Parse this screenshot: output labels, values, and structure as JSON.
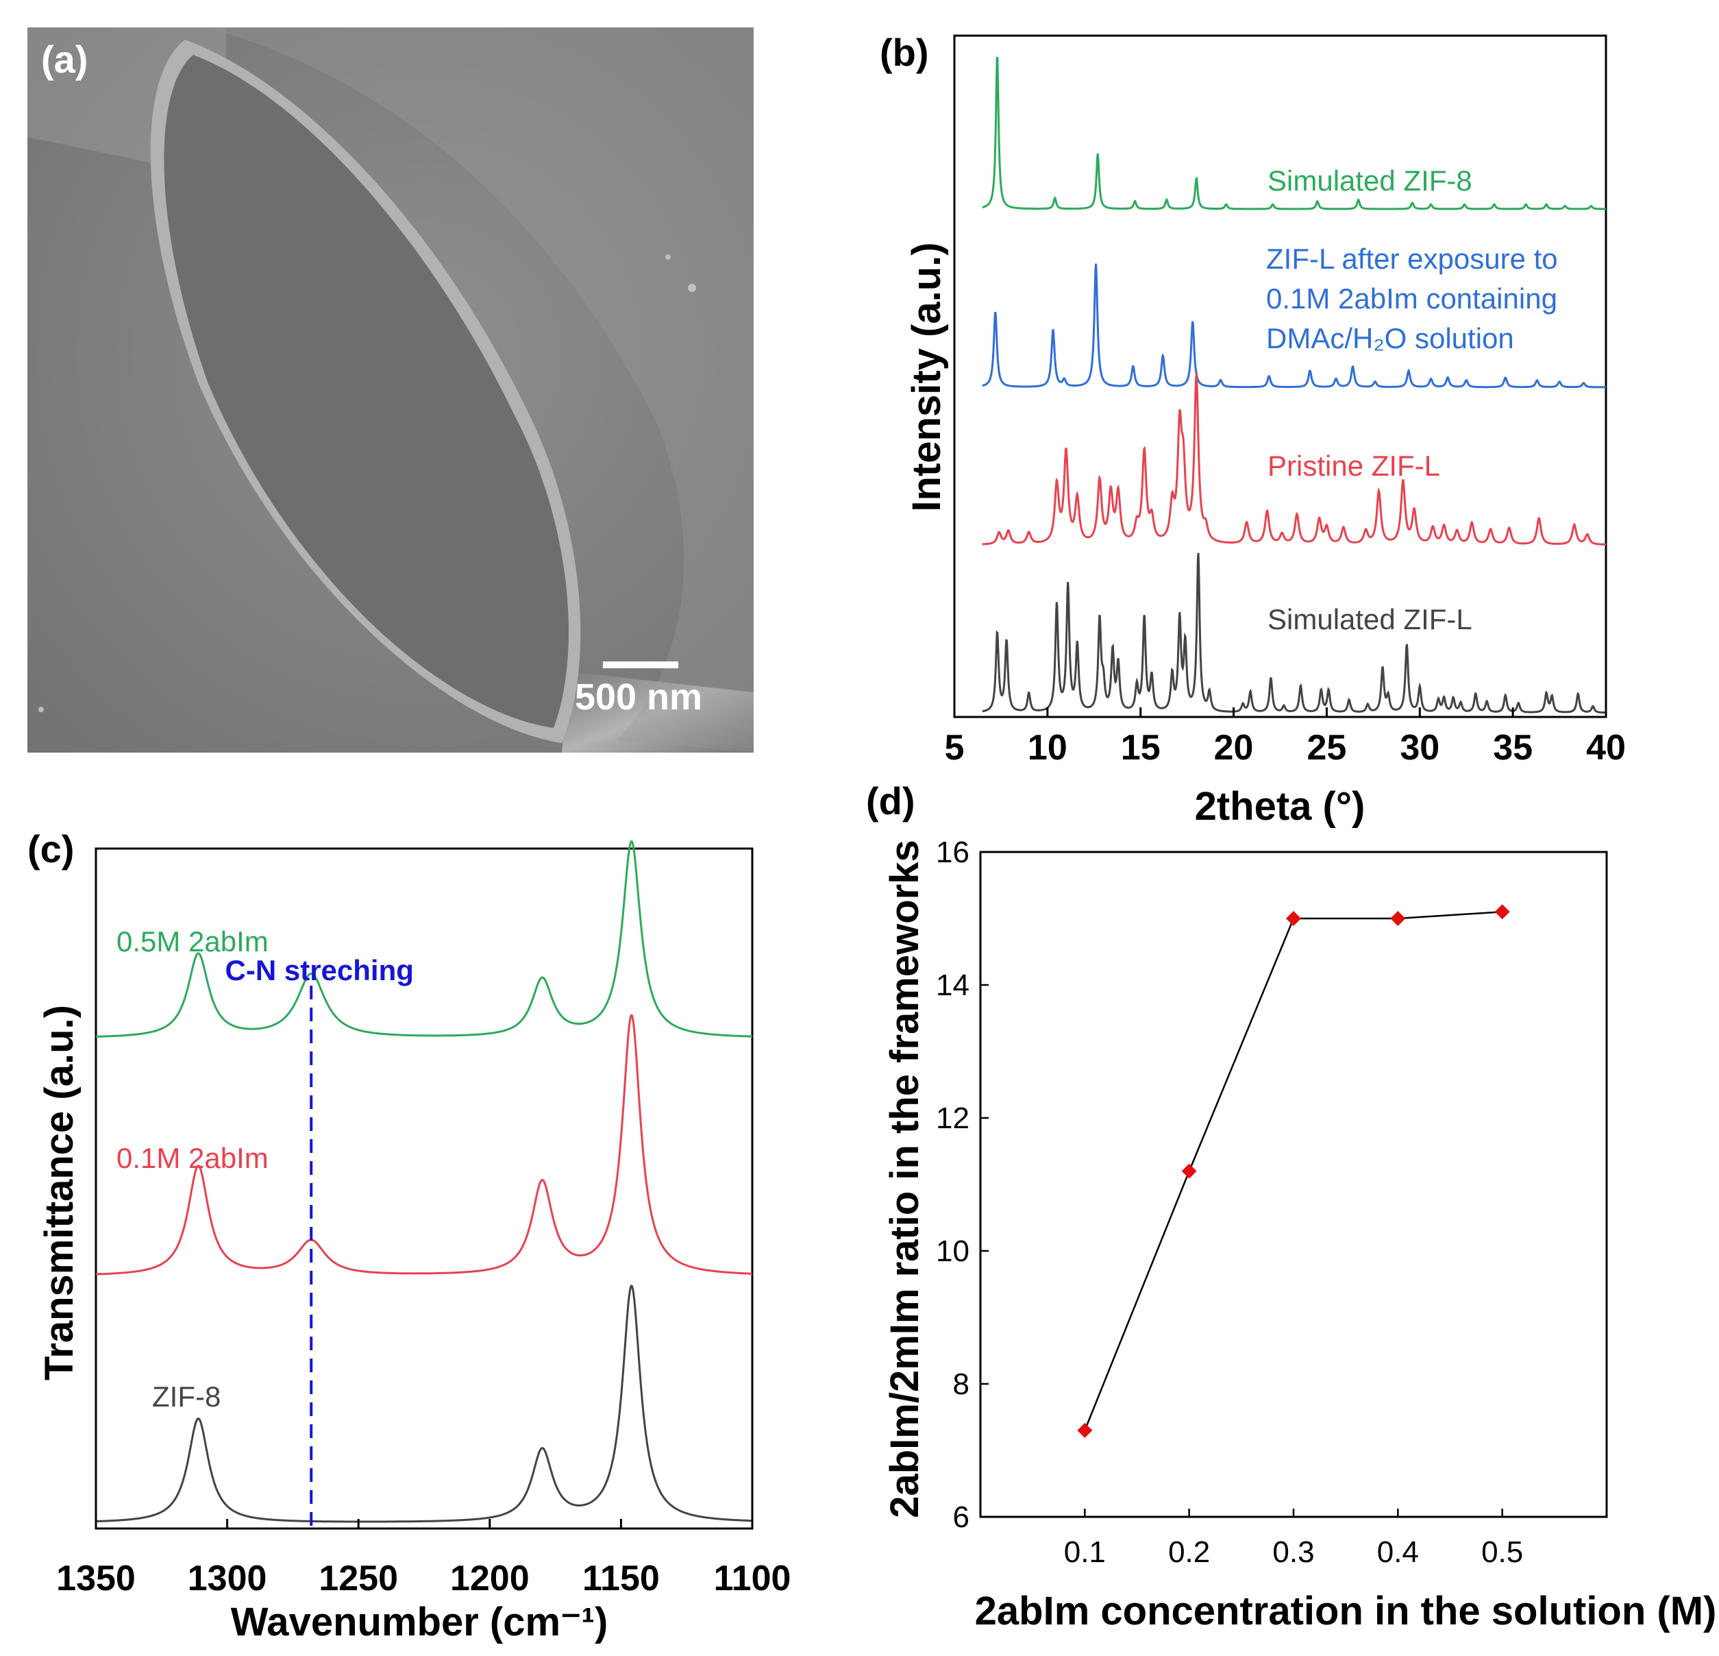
{
  "panels": {
    "a": {
      "label": "(a)",
      "scale_bar": "500 nm"
    },
    "b": {
      "label": "(b)"
    },
    "c": {
      "label": "(c)"
    },
    "d": {
      "label": "(d)"
    }
  },
  "colors": {
    "green": "#2eaa5c",
    "blue": "#2f6fd8",
    "red": "#e8424f",
    "gray": "#444444",
    "annot": "#1515d9",
    "marker": "#e01010"
  },
  "chart_data": [
    {
      "panel": "b",
      "type": "line",
      "title": "",
      "xlabel": "2theta (°)",
      "ylabel": "Intensity (a.u.)",
      "xlim": [
        5,
        40
      ],
      "xticks": [
        "5",
        "10",
        "15",
        "20",
        "25",
        "30",
        "35",
        "40"
      ],
      "series": [
        {
          "name": "Simulated ZIF-8",
          "label_lines": [
            "Simulated ZIF-8"
          ],
          "color": "green",
          "offset": 3,
          "peaks": [
            [
              7.3,
              1.0
            ],
            [
              10.4,
              0.07
            ],
            [
              12.7,
              0.36
            ],
            [
              14.7,
              0.05
            ],
            [
              16.4,
              0.06
            ],
            [
              18.0,
              0.2
            ],
            [
              19.6,
              0.03
            ],
            [
              22.1,
              0.03
            ],
            [
              24.5,
              0.05
            ],
            [
              26.7,
              0.06
            ],
            [
              29.6,
              0.04
            ],
            [
              30.6,
              0.03
            ],
            [
              32.4,
              0.03
            ],
            [
              34.0,
              0.03
            ],
            [
              35.7,
              0.03
            ],
            [
              36.8,
              0.03
            ],
            [
              37.8,
              0.02
            ],
            [
              39.2,
              0.02
            ]
          ]
        },
        {
          "name": "ZIF-L after exposure to 0.1M 2abIm containing DMAc/H2O solution",
          "label_lines": [
            "ZIF-L after exposure to",
            "0.1M 2abIm containing",
            "DMAc/H₂O solution"
          ],
          "color": "blue",
          "offset": 2,
          "peaks": [
            [
              7.2,
              0.55
            ],
            [
              10.3,
              0.42
            ],
            [
              10.9,
              0.05
            ],
            [
              12.6,
              0.9
            ],
            [
              14.6,
              0.15
            ],
            [
              16.2,
              0.23
            ],
            [
              17.8,
              0.48
            ],
            [
              19.3,
              0.05
            ],
            [
              21.9,
              0.08
            ],
            [
              24.1,
              0.12
            ],
            [
              25.5,
              0.06
            ],
            [
              26.4,
              0.15
            ],
            [
              27.6,
              0.04
            ],
            [
              29.4,
              0.12
            ],
            [
              30.6,
              0.06
            ],
            [
              31.5,
              0.07
            ],
            [
              32.5,
              0.05
            ],
            [
              34.6,
              0.07
            ],
            [
              36.3,
              0.05
            ],
            [
              37.5,
              0.04
            ],
            [
              38.8,
              0.03
            ]
          ]
        },
        {
          "name": "Pristine ZIF-L",
          "label_lines": [
            "Pristine ZIF-L"
          ],
          "color": "red",
          "offset": 1,
          "peaks": [
            [
              7.4,
              0.07
            ],
            [
              7.9,
              0.08
            ],
            [
              9.0,
              0.07
            ],
            [
              10.5,
              0.35
            ],
            [
              11.0,
              0.55
            ],
            [
              11.6,
              0.27
            ],
            [
              12.8,
              0.38
            ],
            [
              13.4,
              0.3
            ],
            [
              13.8,
              0.3
            ],
            [
              14.8,
              0.1
            ],
            [
              15.2,
              0.55
            ],
            [
              15.6,
              0.14
            ],
            [
              16.7,
              0.22
            ],
            [
              17.1,
              0.65
            ],
            [
              17.3,
              0.4
            ],
            [
              18.0,
              1.0
            ],
            [
              18.5,
              0.08
            ],
            [
              20.7,
              0.13
            ],
            [
              21.8,
              0.2
            ],
            [
              22.6,
              0.06
            ],
            [
              23.4,
              0.18
            ],
            [
              24.6,
              0.15
            ],
            [
              25.0,
              0.1
            ],
            [
              25.9,
              0.1
            ],
            [
              27.1,
              0.08
            ],
            [
              27.8,
              0.32
            ],
            [
              29.1,
              0.38
            ],
            [
              29.7,
              0.2
            ],
            [
              30.7,
              0.1
            ],
            [
              31.3,
              0.11
            ],
            [
              32.0,
              0.08
            ],
            [
              32.8,
              0.13
            ],
            [
              33.8,
              0.09
            ],
            [
              34.8,
              0.1
            ],
            [
              36.4,
              0.16
            ],
            [
              38.3,
              0.12
            ],
            [
              39.0,
              0.06
            ]
          ]
        },
        {
          "name": "Simulated ZIF-L",
          "label_lines": [
            "Simulated ZIF-L"
          ],
          "color": "gray",
          "offset": 0,
          "peaks": [
            [
              7.3,
              0.5
            ],
            [
              7.8,
              0.45
            ],
            [
              9.0,
              0.12
            ],
            [
              10.5,
              0.68
            ],
            [
              11.1,
              0.8
            ],
            [
              11.6,
              0.42
            ],
            [
              12.8,
              0.58
            ],
            [
              13.0,
              0.17
            ],
            [
              13.5,
              0.38
            ],
            [
              13.8,
              0.3
            ],
            [
              14.8,
              0.16
            ],
            [
              15.2,
              0.6
            ],
            [
              15.6,
              0.22
            ],
            [
              16.7,
              0.23
            ],
            [
              17.1,
              0.58
            ],
            [
              17.4,
              0.42
            ],
            [
              18.1,
              1.0
            ],
            [
              18.7,
              0.12
            ],
            [
              20.5,
              0.05
            ],
            [
              20.9,
              0.13
            ],
            [
              22.0,
              0.22
            ],
            [
              22.7,
              0.04
            ],
            [
              23.6,
              0.17
            ],
            [
              24.7,
              0.14
            ],
            [
              25.1,
              0.14
            ],
            [
              26.2,
              0.08
            ],
            [
              27.2,
              0.05
            ],
            [
              28.0,
              0.28
            ],
            [
              28.3,
              0.1
            ],
            [
              29.3,
              0.43
            ],
            [
              30.0,
              0.16
            ],
            [
              31.0,
              0.08
            ],
            [
              31.3,
              0.09
            ],
            [
              31.8,
              0.09
            ],
            [
              32.2,
              0.06
            ],
            [
              33.0,
              0.12
            ],
            [
              33.6,
              0.07
            ],
            [
              34.6,
              0.11
            ],
            [
              35.3,
              0.06
            ],
            [
              36.8,
              0.12
            ],
            [
              37.1,
              0.1
            ],
            [
              38.5,
              0.12
            ],
            [
              39.3,
              0.04
            ]
          ]
        }
      ]
    },
    {
      "panel": "c",
      "type": "line",
      "title": "",
      "xlabel": "Wavenumber (cm⁻¹)",
      "ylabel": "Transmittance (a.u.)",
      "xlim": [
        1350,
        1100
      ],
      "xticks": [
        "1350",
        "1300",
        "1250",
        "1200",
        "1150",
        "1100"
      ],
      "annotation": {
        "text": "C-N streching",
        "x": 1268
      },
      "series": [
        {
          "name": "0.5M 2abIm",
          "color": "green",
          "offset": 2,
          "peaks": [
            [
              1311,
              0.29
            ],
            [
              1268,
              0.22
            ],
            [
              1180,
              0.2
            ],
            [
              1146,
              0.68
            ]
          ]
        },
        {
          "name": "0.1M 2abIm",
          "color": "red",
          "offset": 1,
          "peaks": [
            [
              1311,
              0.38
            ],
            [
              1268,
              0.12
            ],
            [
              1180,
              0.32
            ],
            [
              1146,
              0.9
            ]
          ]
        },
        {
          "name": "ZIF-8",
          "color": "gray",
          "offset": 0,
          "peaks": [
            [
              1311,
              0.38
            ],
            [
              1180,
              0.26
            ],
            [
              1146,
              0.86
            ]
          ]
        }
      ]
    },
    {
      "panel": "d",
      "type": "scatter",
      "title": "",
      "xlabel": "2abIm concentration in the solution (M)",
      "ylabel": "2abIm/2mIm ratio in the frameworks",
      "x": [
        0.1,
        0.2,
        0.3,
        0.4,
        0.5
      ],
      "y": [
        7.3,
        11.2,
        15.0,
        15.0,
        15.1
      ],
      "xlim": [
        0.0,
        0.6
      ],
      "ylim": [
        6,
        16
      ],
      "xticks": [
        "0.1",
        "0.2",
        "0.3",
        "0.4",
        "0.5"
      ],
      "yticks": [
        "6",
        "8",
        "10",
        "12",
        "14",
        "16"
      ]
    }
  ]
}
